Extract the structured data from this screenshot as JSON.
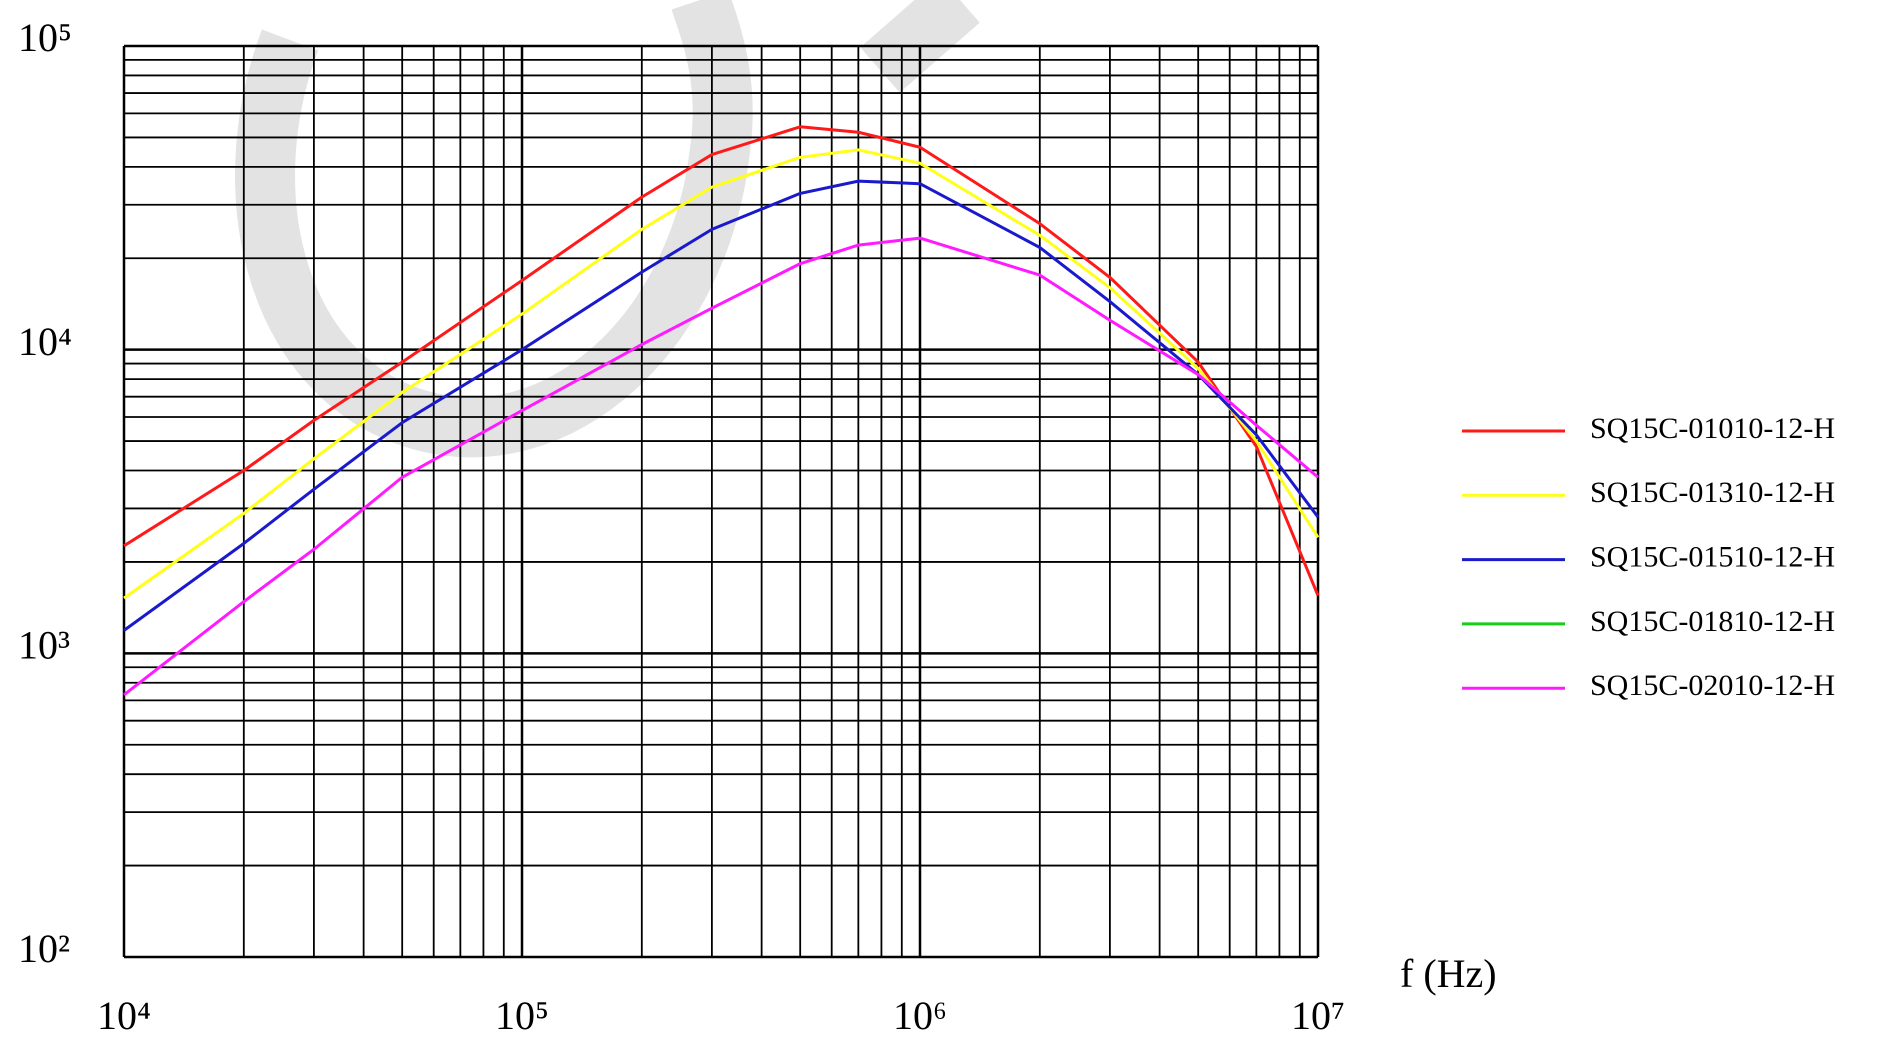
{
  "chart_data": {
    "type": "line",
    "x_label": "f (Hz)",
    "log_x": true,
    "log_y": true,
    "grid": true,
    "legend": "right",
    "xlim": [
      10000,
      10000000
    ],
    "ylim": [
      100,
      100000
    ],
    "xticks": [
      {
        "value": 10000,
        "label": "10⁴"
      },
      {
        "value": 100000,
        "label": "10⁵"
      },
      {
        "value": 1000000,
        "label": "10⁶"
      },
      {
        "value": 10000000,
        "label": "10⁷"
      }
    ],
    "yticks": [
      {
        "value": 100,
        "label": "10²"
      },
      {
        "value": 1000,
        "label": "10³"
      },
      {
        "value": 10000,
        "label": "10⁴"
      },
      {
        "value": 100000,
        "label": "10⁵"
      }
    ],
    "x_minor_ticks": [
      20000,
      30000,
      40000,
      50000,
      60000,
      70000,
      80000,
      90000,
      200000,
      300000,
      400000,
      500000,
      600000,
      700000,
      800000,
      900000,
      2000000,
      3000000,
      4000000,
      5000000,
      6000000,
      7000000,
      8000000,
      9000000
    ],
    "y_minor_ticks": [
      200,
      300,
      400,
      500,
      600,
      700,
      800,
      900,
      2000,
      3000,
      4000,
      5000,
      6000,
      7000,
      8000,
      9000,
      20000,
      30000,
      40000,
      50000,
      60000,
      70000,
      80000,
      90000
    ],
    "x": [
      10000,
      20000,
      30000,
      50000,
      100000,
      200000,
      300000,
      500000,
      700000,
      1000000,
      2000000,
      3000000,
      5000000,
      7000000,
      10000000
    ],
    "series": [
      {
        "name": "SQ15C-01010-12-H",
        "color": "#ff1a1a",
        "values": [
          2260,
          4000,
          5850,
          9100,
          16900,
          31800,
          43900,
          54200,
          52000,
          46400,
          26000,
          17300,
          9100,
          4800,
          1550
        ]
      },
      {
        "name": "SQ15C-01310-12-H",
        "color": "#ffff1a",
        "values": [
          1520,
          2890,
          4370,
          7230,
          13100,
          24900,
          34300,
          43000,
          45500,
          41100,
          23800,
          16000,
          8670,
          5000,
          2410
        ]
      },
      {
        "name": "SQ15C-01510-12-H",
        "color": "#1a1acc",
        "values": [
          1190,
          2300,
          3470,
          5750,
          10000,
          18000,
          24900,
          32700,
          35900,
          35200,
          21700,
          14400,
          8280,
          5240,
          2810
        ]
      },
      {
        "name": "SQ15C-01810-12-H",
        "color": "#1acc1a",
        "values": [
          null,
          null,
          null,
          null,
          null,
          null,
          null,
          null,
          null,
          null,
          null,
          null,
          null,
          null,
          null
        ]
      },
      {
        "name": "SQ15C-02010-12-H",
        "color": "#ff1aff",
        "values": [
          730,
          1480,
          2200,
          3800,
          6300,
          10400,
          13700,
          19200,
          22100,
          23300,
          17600,
          12500,
          8280,
          5640,
          3800
        ]
      }
    ]
  }
}
